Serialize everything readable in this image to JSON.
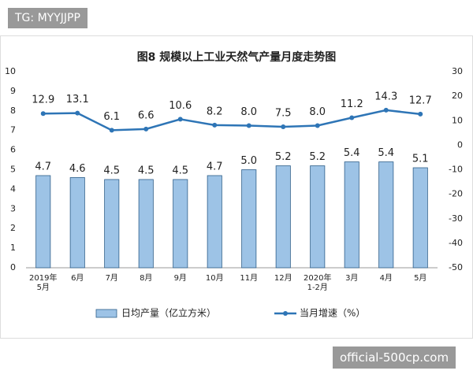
{
  "watermarks": {
    "top_left": "TG: MYYJJPP",
    "bottom_right": "official-500cp.com"
  },
  "chart_data": {
    "type": "bar-line",
    "title": "图8  规模以上工业天然气产量月度走势图",
    "categories": [
      "2019年\n5月",
      "6月",
      "7月",
      "8月",
      "9月",
      "10月",
      "11月",
      "12月",
      "2020年\n1-2月",
      "3月",
      "4月",
      "5月"
    ],
    "series": [
      {
        "name": "日均产量（亿立方米）",
        "type": "bar",
        "color": "#9dc3e6",
        "values": [
          4.7,
          4.6,
          4.5,
          4.5,
          4.5,
          4.7,
          5.0,
          5.2,
          5.2,
          5.4,
          5.4,
          5.1
        ],
        "value_labels": [
          "4.7",
          "4.6",
          "4.5",
          "4.5",
          "4.5",
          "4.7",
          "5.0",
          "5.2",
          "5.2",
          "5.4",
          "5.4",
          "5.1"
        ]
      },
      {
        "name": "当月增速（%）",
        "type": "line",
        "axis": "y2",
        "color": "#2e75b6",
        "values": [
          12.9,
          13.1,
          6.1,
          6.6,
          10.6,
          8.2,
          8.0,
          7.5,
          8.0,
          11.2,
          14.3,
          12.7
        ],
        "value_labels": [
          "12.9",
          "13.1",
          "6.1",
          "6.6",
          "10.6",
          "8.2",
          "8.0",
          "7.5",
          "8.0",
          "11.2",
          "14.3",
          "12.7"
        ]
      }
    ],
    "ylim": [
      0,
      10
    ],
    "yticks": [
      0,
      1,
      2,
      3,
      4,
      5,
      6,
      7,
      8,
      9,
      10
    ],
    "y2lim": [
      -50,
      30
    ],
    "y2ticks": [
      -50,
      -40,
      -30,
      -20,
      -10,
      0,
      10,
      20,
      30
    ],
    "legend": "bottom"
  }
}
